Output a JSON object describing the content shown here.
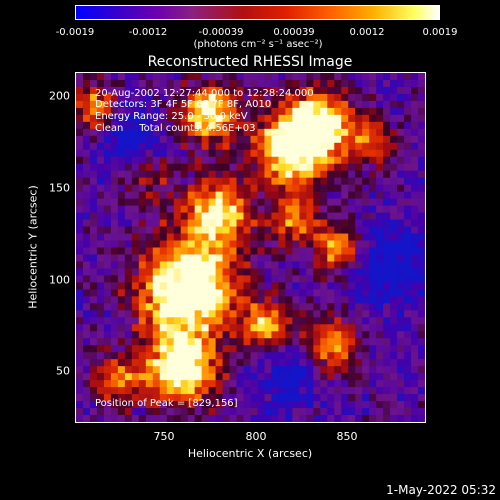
{
  "colorbar": {
    "ticks": [
      "-0.0019",
      "-0.0012",
      "-0.00039",
      "0.00039",
      "0.0012",
      "0.0019"
    ],
    "units": "(photons cm⁻² s⁻¹ asec⁻²)"
  },
  "title": "Reconstructed RHESSI Image",
  "annotation": {
    "time_range": "20-Aug-2002 12:27:44.000 to 12:28:24.000",
    "detectors": "Detectors: 3F 4F 5F 6F 7F 8F, A010",
    "energy": "Energy Range: 25.0 - 50.0 keV",
    "clean": "Clean     Total counts: 4.56E+03",
    "peak": "Position of Peak = [829,156]"
  },
  "axes": {
    "xlabel": "Heliocentric X (arcsec)",
    "ylabel": "Heliocentric Y (arcsec)",
    "xticks": [
      "750",
      "800",
      "850"
    ],
    "yticks": [
      "200",
      "150",
      "100",
      "50"
    ]
  },
  "footer": "1-May-2022 05:32",
  "image": {
    "type": "heatmap",
    "colormap": "blue-purple-red-yellow-white",
    "background": "#000000"
  }
}
